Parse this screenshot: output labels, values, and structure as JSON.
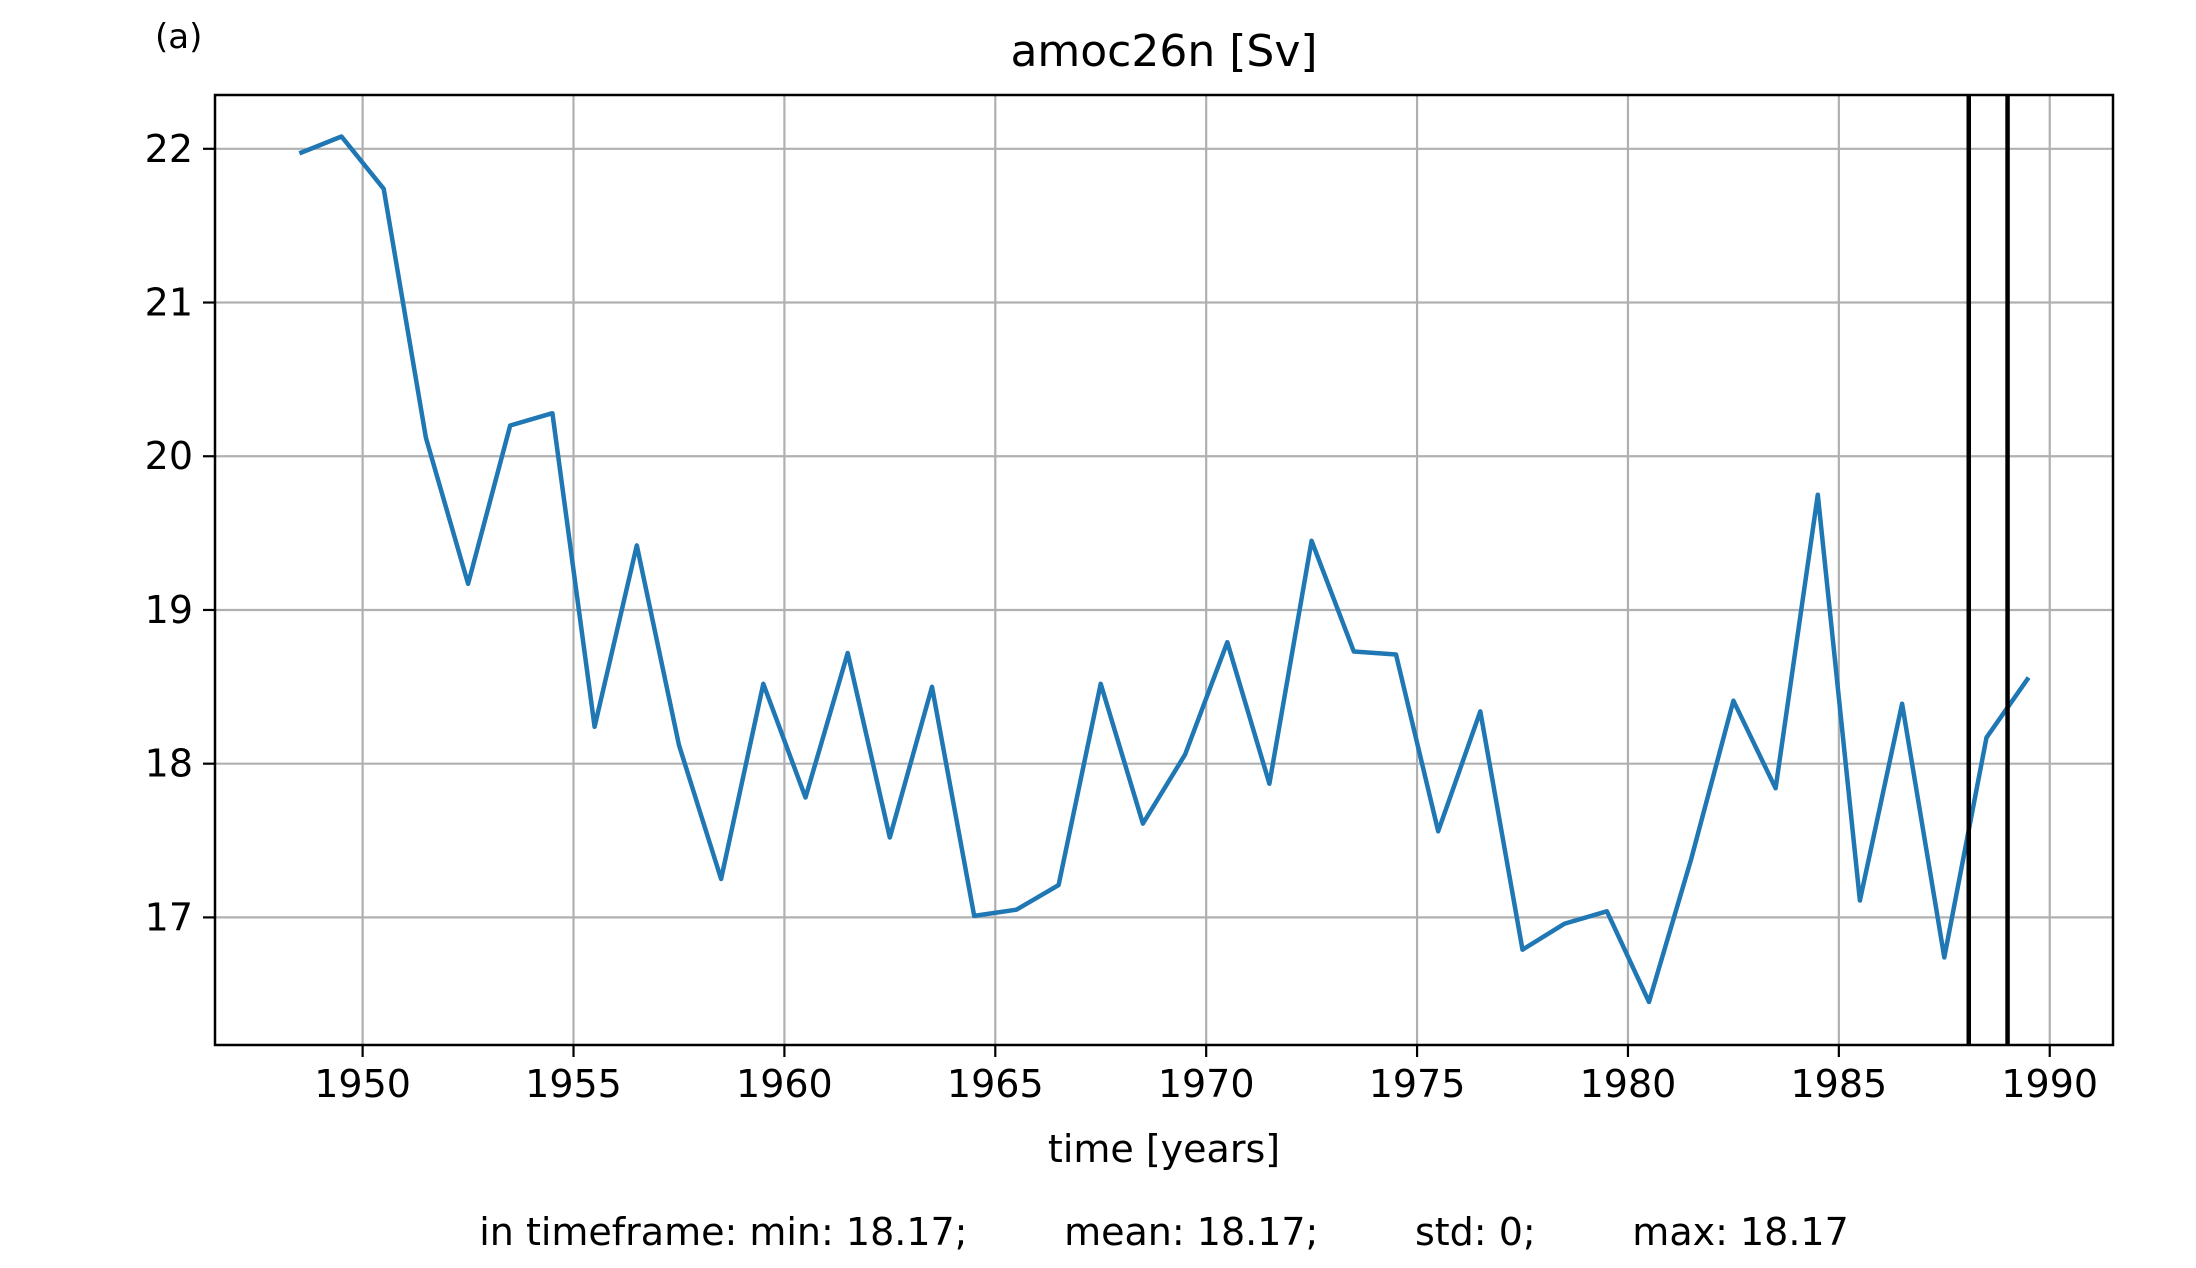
{
  "panel_label": "(a)",
  "stats_line": "in timeframe: min: 18.17;        mean: 18.17;        std: 0;        max: 18.17",
  "colors": {
    "line": "#1f77b4",
    "grid": "#b0b0b0",
    "axes": "#000000",
    "marker_lines": "#000000"
  },
  "chart_data": {
    "type": "line",
    "title": "amoc26n [Sv]",
    "xlabel": "time [years]",
    "ylabel": "",
    "xlim": [
      1946.5,
      1991.5
    ],
    "ylim": [
      16.17,
      22.35
    ],
    "xticks": [
      1950,
      1955,
      1960,
      1965,
      1970,
      1975,
      1980,
      1985,
      1990
    ],
    "yticks": [
      17,
      18,
      19,
      20,
      21,
      22
    ],
    "grid": true,
    "vertical_lines": [
      1988.08,
      1989.0
    ],
    "series": [
      {
        "x": [
          1948.5,
          1949.5,
          1950.5,
          1951.5,
          1952.5,
          1953.5,
          1954.5,
          1955.5,
          1956.5,
          1957.5,
          1958.5,
          1959.5,
          1960.5,
          1961.5,
          1962.5,
          1963.5,
          1964.5,
          1965.5,
          1966.5,
          1967.5,
          1968.5,
          1969.5,
          1970.5,
          1971.5,
          1972.5,
          1973.5,
          1974.5,
          1975.5,
          1976.5,
          1977.5,
          1978.5,
          1979.5,
          1980.5,
          1981.5,
          1982.5,
          1983.5,
          1984.5,
          1985.5,
          1986.5,
          1987.5,
          1988.5,
          1989.5
        ],
        "values": [
          21.97,
          22.08,
          21.74,
          20.12,
          19.17,
          20.2,
          20.28,
          18.24,
          19.42,
          18.12,
          17.25,
          18.52,
          17.78,
          18.72,
          17.52,
          18.5,
          17.01,
          17.05,
          17.21,
          18.52,
          17.61,
          18.06,
          18.79,
          17.87,
          19.45,
          18.73,
          18.71,
          17.56,
          18.34,
          16.79,
          16.96,
          17.04,
          16.45,
          17.38,
          18.41,
          17.84,
          19.75,
          17.11,
          18.39,
          16.74,
          18.17,
          18.56
        ]
      }
    ]
  }
}
